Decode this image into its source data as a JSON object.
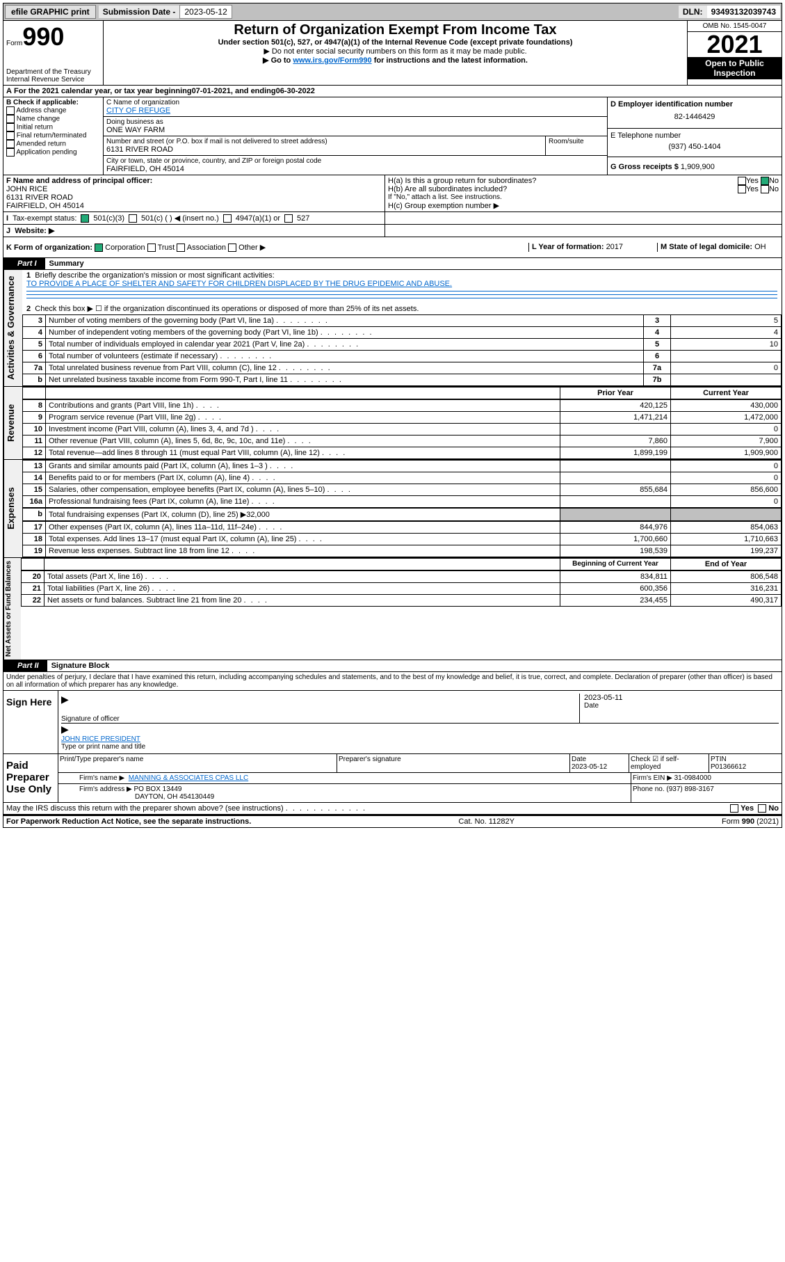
{
  "top_bar": {
    "efile_btn": "efile GRAPHIC print",
    "subdate_label": "Submission Date - ",
    "subdate_value": "2023-05-12",
    "dln_label": "DLN: ",
    "dln_value": "93493132039743"
  },
  "header": {
    "form_prefix": "Form",
    "form_number": "990",
    "dept": "Department of the Treasury",
    "irs": "Internal Revenue Service",
    "title": "Return of Organization Exempt From Income Tax",
    "subtitle1": "Under section 501(c), 527, or 4947(a)(1) of the Internal Revenue Code (except private foundations)",
    "subtitle2": "▶ Do not enter social security numbers on this form as it may be made public.",
    "subtitle3_pre": "▶ Go to ",
    "subtitle3_link": "www.irs.gov/Form990",
    "subtitle3_post": " for instructions and the latest information.",
    "omb": "OMB No. 1545-0047",
    "year": "2021",
    "open": "Open to Public",
    "inspection": "Inspection"
  },
  "period": {
    "line_pre": "For the 2021 calendar year, or tax year beginning ",
    "begin": "07-01-2021",
    "mid": " , and ending ",
    "end": "06-30-2022"
  },
  "boxB": {
    "title": "B Check if applicable:",
    "items": [
      "Address change",
      "Name change",
      "Initial return",
      "Final return/terminated",
      "Amended return",
      "Application pending"
    ]
  },
  "boxC": {
    "label": "C Name of organization",
    "name": "CITY OF REFUGE",
    "dba_label": "Doing business as",
    "dba": "ONE WAY FARM",
    "street_label": "Number and street (or P.O. box if mail is not delivered to street address)",
    "street": "6131 RIVER ROAD",
    "room_label": "Room/suite",
    "city_label": "City or town, state or province, country, and ZIP or foreign postal code",
    "city": "FAIRFIELD, OH  45014"
  },
  "boxD": {
    "label": "D Employer identification number",
    "value": "82-1446429"
  },
  "boxE": {
    "label": "E Telephone number",
    "value": "(937) 450-1404"
  },
  "boxG": {
    "label": "G Gross receipts $ ",
    "value": "1,909,900"
  },
  "boxF": {
    "label": "F Name and address of principal officer:",
    "name": "JOHN RICE",
    "addr1": "6131 RIVER ROAD",
    "addr2": "FAIRFIELD, OH  45014"
  },
  "boxH": {
    "a": "H(a)  Is this a group return for subordinates?",
    "b": "H(b)  Are all subordinates included?",
    "note": "If \"No,\" attach a list. See instructions.",
    "c": "H(c)  Group exemption number ▶"
  },
  "boxI": {
    "label": "Tax-exempt status:",
    "c3": "501(c)(3)",
    "c": "501(c) (   ) ◀ (insert no.)",
    "a1": "4947(a)(1) or",
    "s527": "527"
  },
  "boxJ": {
    "label": "Website: ▶",
    "value": ""
  },
  "boxK": {
    "label": "K Form of organization:",
    "corp": "Corporation",
    "trust": "Trust",
    "assoc": "Association",
    "other": "Other ▶"
  },
  "boxL": {
    "label": "L Year of formation: ",
    "value": "2017"
  },
  "boxM": {
    "label": "M State of legal domicile: ",
    "value": "OH"
  },
  "parts": {
    "p1": "Part I",
    "p1_title": "Summary",
    "p2": "Part II",
    "p2_title": "Signature Block"
  },
  "summary": {
    "side_labels": [
      "Activities & Governance",
      "Revenue",
      "Expenses",
      "Net Assets or Fund Balances"
    ],
    "line1": "Briefly describe the organization's mission or most significant activities:",
    "mission": "TO PROVIDE A PLACE OF SHELTER AND SAFETY FOR CHILDREN DISPLACED BY THE DRUG EPIDEMIC AND ABUSE.",
    "line2": "Check this box ▶ ☐  if the organization discontinued its operations or disposed of more than 25% of its net assets.",
    "rows_a": [
      {
        "n": "3",
        "t": "Number of voting members of the governing body (Part VI, line 1a)",
        "rn": "3",
        "v": "5"
      },
      {
        "n": "4",
        "t": "Number of independent voting members of the governing body (Part VI, line 1b)",
        "rn": "4",
        "v": "4"
      },
      {
        "n": "5",
        "t": "Total number of individuals employed in calendar year 2021 (Part V, line 2a)",
        "rn": "5",
        "v": "10"
      },
      {
        "n": "6",
        "t": "Total number of volunteers (estimate if necessary)",
        "rn": "6",
        "v": ""
      },
      {
        "n": "7a",
        "t": "Total unrelated business revenue from Part VIII, column (C), line 12",
        "rn": "7a",
        "v": "0"
      },
      {
        "n": "b",
        "t": "Net unrelated business taxable income from Form 990-T, Part I, line 11",
        "rn": "7b",
        "v": ""
      }
    ],
    "col_header_prior": "Prior Year",
    "col_header_current": "Current Year",
    "rows_rev": [
      {
        "n": "8",
        "t": "Contributions and grants (Part VIII, line 1h)",
        "p": "420,125",
        "c": "430,000"
      },
      {
        "n": "9",
        "t": "Program service revenue (Part VIII, line 2g)",
        "p": "1,471,214",
        "c": "1,472,000"
      },
      {
        "n": "10",
        "t": "Investment income (Part VIII, column (A), lines 3, 4, and 7d )",
        "p": "",
        "c": "0"
      },
      {
        "n": "11",
        "t": "Other revenue (Part VIII, column (A), lines 5, 6d, 8c, 9c, 10c, and 11e)",
        "p": "7,860",
        "c": "7,900"
      },
      {
        "n": "12",
        "t": "Total revenue—add lines 8 through 11 (must equal Part VIII, column (A), line 12)",
        "p": "1,899,199",
        "c": "1,909,900"
      }
    ],
    "rows_exp": [
      {
        "n": "13",
        "t": "Grants and similar amounts paid (Part IX, column (A), lines 1–3 )",
        "p": "",
        "c": "0"
      },
      {
        "n": "14",
        "t": "Benefits paid to or for members (Part IX, column (A), line 4)",
        "p": "",
        "c": "0"
      },
      {
        "n": "15",
        "t": "Salaries, other compensation, employee benefits (Part IX, column (A), lines 5–10)",
        "p": "855,684",
        "c": "856,600"
      },
      {
        "n": "16a",
        "t": "Professional fundraising fees (Part IX, column (A), line 11e)",
        "p": "",
        "c": "0"
      }
    ],
    "line16b": "Total fundraising expenses (Part IX, column (D), line 25) ▶32,000",
    "rows_exp2": [
      {
        "n": "17",
        "t": "Other expenses (Part IX, column (A), lines 11a–11d, 11f–24e)",
        "p": "844,976",
        "c": "854,063"
      },
      {
        "n": "18",
        "t": "Total expenses. Add lines 13–17 (must equal Part IX, column (A), line 25)",
        "p": "1,700,660",
        "c": "1,710,663"
      },
      {
        "n": "19",
        "t": "Revenue less expenses. Subtract line 18 from line 12",
        "p": "198,539",
        "c": "199,237"
      }
    ],
    "col_header_begin": "Beginning of Current Year",
    "col_header_endyr": "End of Year",
    "rows_net": [
      {
        "n": "20",
        "t": "Total assets (Part X, line 16)",
        "p": "834,811",
        "c": "806,548"
      },
      {
        "n": "21",
        "t": "Total liabilities (Part X, line 26)",
        "p": "600,356",
        "c": "316,231"
      },
      {
        "n": "22",
        "t": "Net assets or fund balances. Subtract line 21 from line 20",
        "p": "234,455",
        "c": "490,317"
      }
    ]
  },
  "sig": {
    "declaration": "Under penalties of perjury, I declare that I have examined this return, including accompanying schedules and statements, and to the best of my knowledge and belief, it is true, correct, and complete. Declaration of preparer (other than officer) is based on all information of which preparer has any knowledge.",
    "sign_here": "Sign Here",
    "sig_officer_label": "Signature of officer",
    "date_label": "Date",
    "sig_date": "2023-05-11",
    "officer_name": "JOHN RICE PRESIDENT",
    "officer_label": "Type or print name and title",
    "paid_label": "Paid Preparer Use Only",
    "prep_name_label": "Print/Type preparer's name",
    "prep_sig_label": "Preparer's signature",
    "prep_date_label": "Date",
    "prep_date": "2023-05-12",
    "check_label": "Check ☑ if self-employed",
    "ptin_label": "PTIN",
    "ptin": "P01366612",
    "firm_name_label": "Firm's name   ▶",
    "firm_name": "MANNING & ASSOCIATES CPAS LLC",
    "firm_ein_label": "Firm's EIN ▶",
    "firm_ein": "31-0984000",
    "firm_addr_label": "Firm's address ▶",
    "firm_addr1": "PO BOX 13449",
    "firm_addr2": "DAYTON, OH  454130449",
    "firm_phone_label": "Phone no. ",
    "firm_phone": "(937) 898-3167",
    "discuss": "May the IRS discuss this return with the preparer shown above? (see instructions)",
    "yes": "Yes",
    "no": "No"
  },
  "footer": {
    "left": "For Paperwork Reduction Act Notice, see the separate instructions.",
    "mid": "Cat. No. 11282Y",
    "right": "Form 990 (2021)"
  },
  "yesno": {
    "yes": "Yes",
    "no": "No"
  }
}
